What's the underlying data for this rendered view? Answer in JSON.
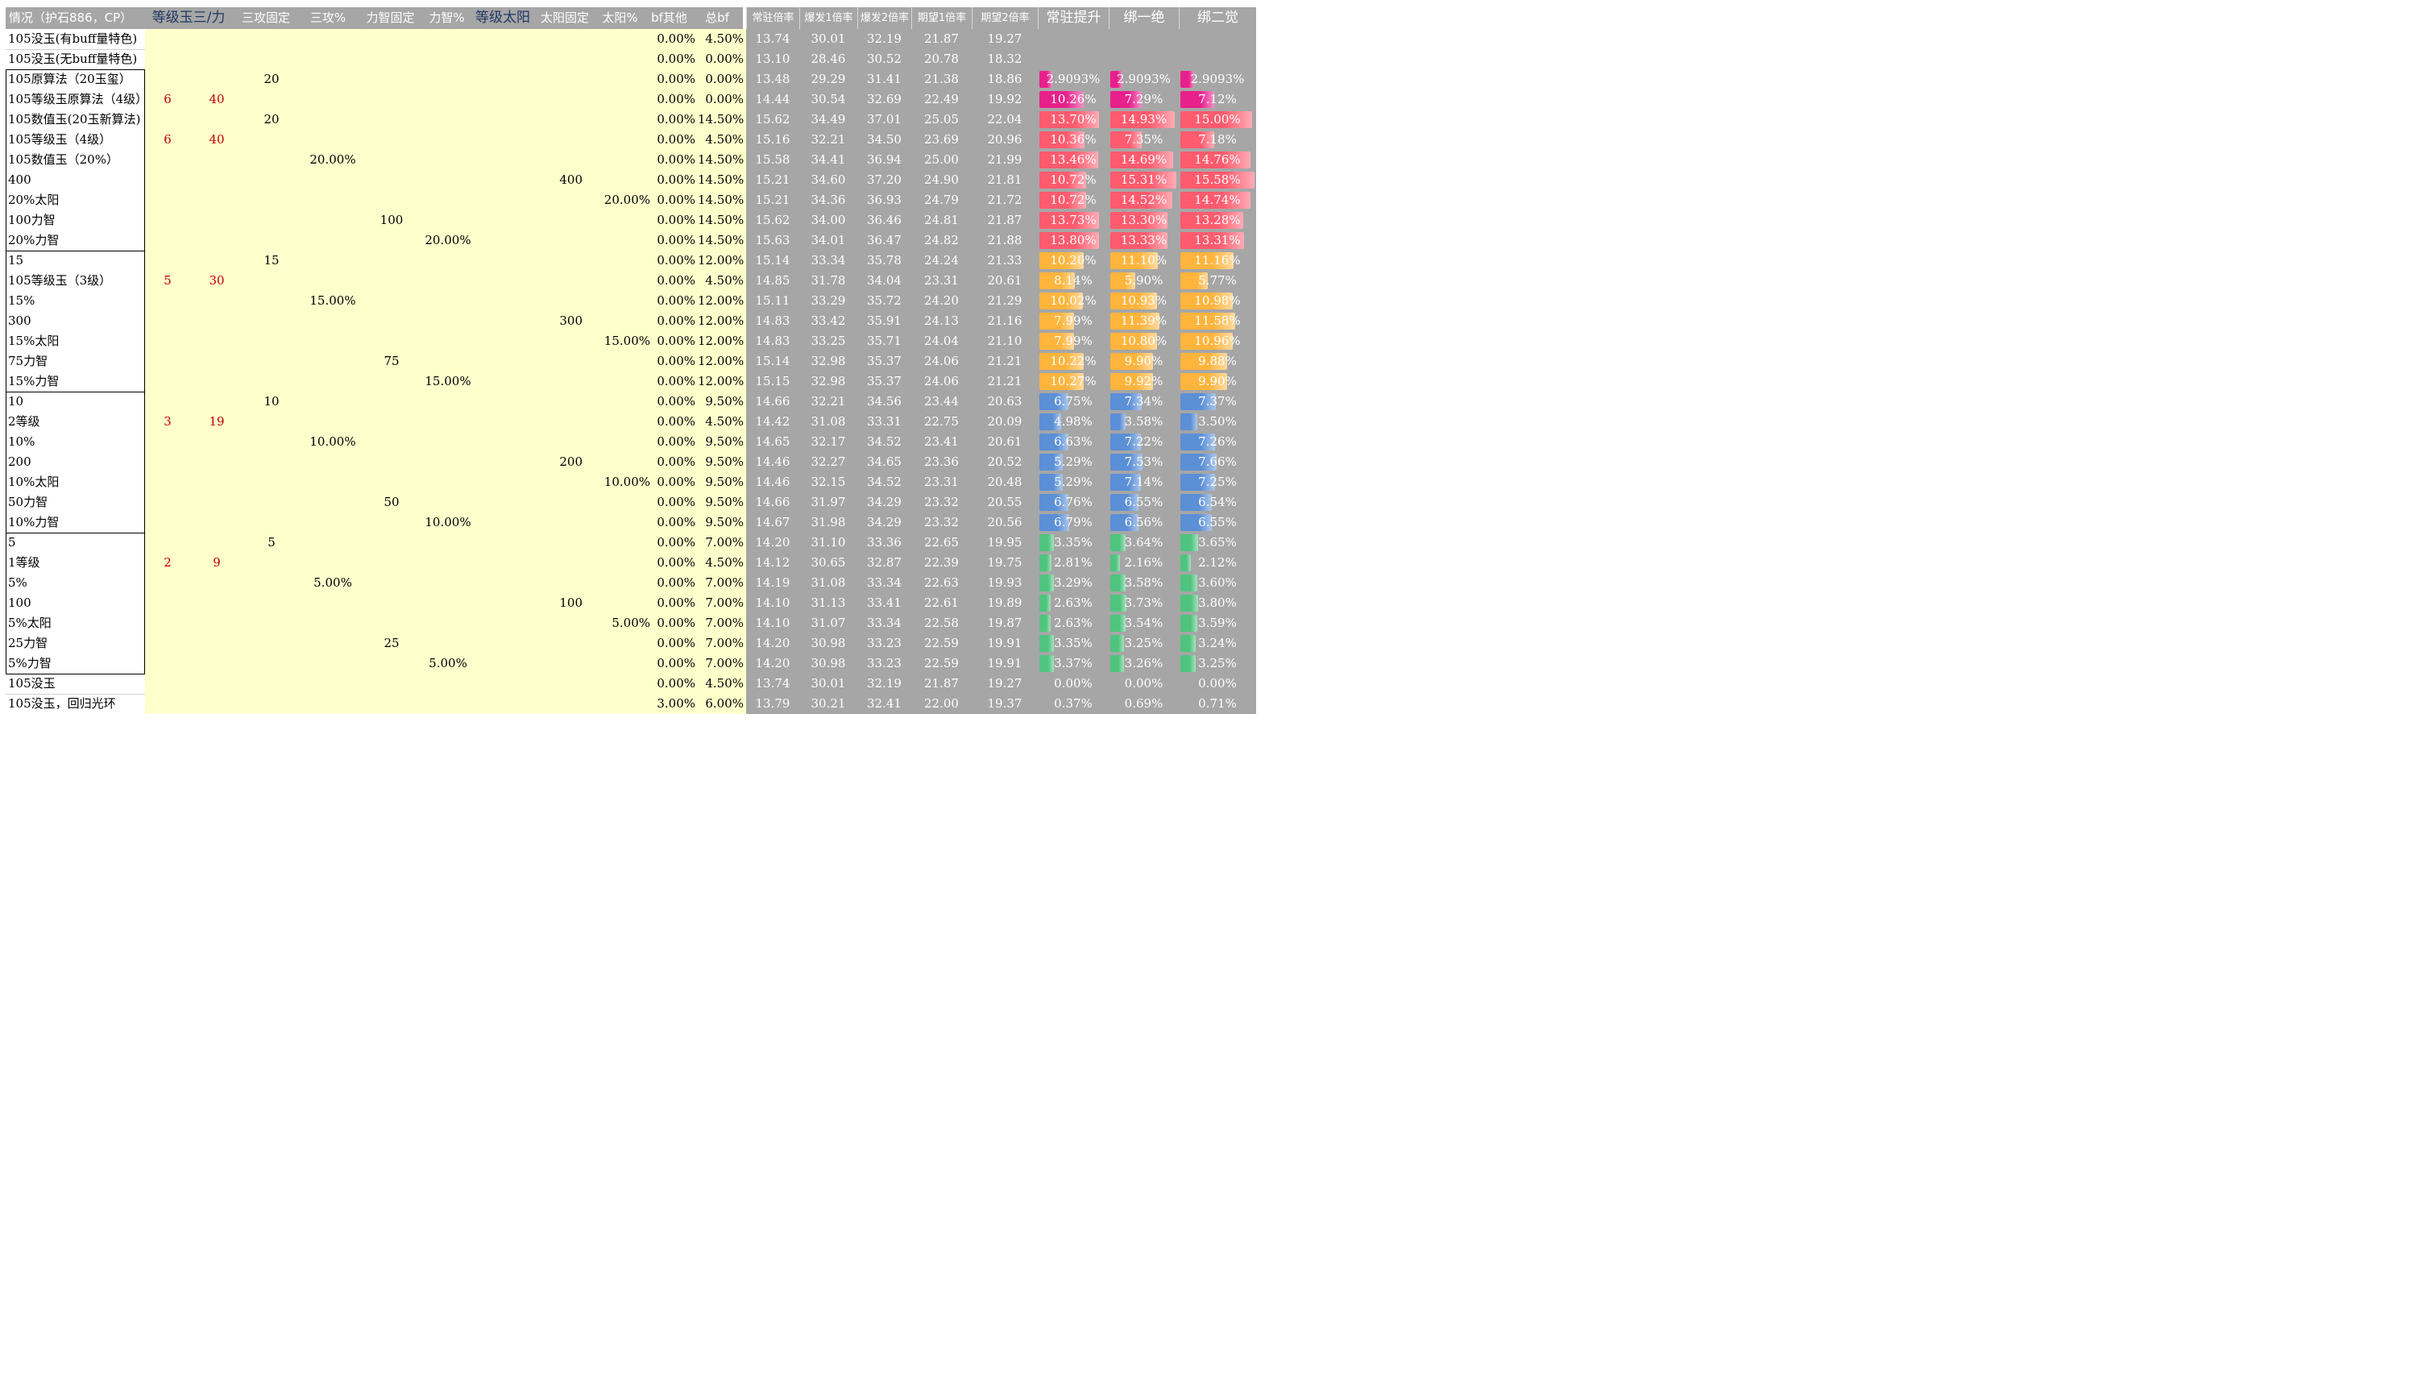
{
  "headers": [
    "情况（护石886，CP）",
    "等级玉三/力",
    "三攻固定",
    "三攻%",
    "力智固定",
    "力智%",
    "等级太阳",
    "太阳固定",
    "太阳%",
    "bf其他",
    "总bf",
    "常驻倍率",
    "爆发1倍率",
    "爆发2倍率",
    "期望1倍率",
    "期望2倍率",
    "常驻提升",
    "绑一绝",
    "绑二觉"
  ],
  "colors": {
    "magenta": "#e8208c",
    "red": "#ff5b6e",
    "orange": "#ffb43c",
    "blue": "#5b8fd6",
    "green": "#4fc47e",
    "grey": "#a6a6a6",
    "yellow": "#ffffcc",
    "red_text": "#c00000"
  },
  "rows": [
    {
      "label": "105没玉(有buff量特色)",
      "lvl": "",
      "lvlatk": "",
      "atk": "",
      "atkp": "",
      "stat": "",
      "statp": "",
      "sun": "",
      "sunp": "",
      "bfo": "0.00%",
      "bf": "4.50%",
      "m": [
        "13.74",
        "30.01",
        "32.19",
        "21.87",
        "19.27"
      ],
      "p": [
        "",
        "",
        ""
      ],
      "tone": "none"
    },
    {
      "label": "105没玉(无buff量特色)",
      "lvl": "",
      "lvlatk": "",
      "atk": "",
      "atkp": "",
      "stat": "",
      "statp": "",
      "sun": "",
      "sunp": "",
      "bfo": "0.00%",
      "bf": "0.00%",
      "m": [
        "13.10",
        "28.46",
        "30.52",
        "20.78",
        "18.32"
      ],
      "p": [
        "",
        "",
        ""
      ],
      "tone": "none"
    },
    {
      "label": "105原算法（20玉玺）",
      "lvl": "",
      "lvlatk": "",
      "atk": "20",
      "atkp": "",
      "stat": "",
      "statp": "",
      "sun": "",
      "sunp": "",
      "bfo": "0.00%",
      "bf": "0.00%",
      "m": [
        "13.48",
        "29.29",
        "31.41",
        "21.38",
        "18.86"
      ],
      "p": [
        "2.9093%",
        "2.9093%",
        "2.9093%"
      ],
      "tone": "magenta"
    },
    {
      "label": "105等级玉原算法（4级）",
      "lvl": "6",
      "lvlatk": "40",
      "atk": "",
      "atkp": "",
      "stat": "",
      "statp": "",
      "sun": "",
      "sunp": "",
      "bfo": "0.00%",
      "bf": "0.00%",
      "m": [
        "14.44",
        "30.54",
        "32.69",
        "22.49",
        "19.92"
      ],
      "p": [
        "10.26%",
        "7.29%",
        "7.12%"
      ],
      "tone": "magenta"
    },
    {
      "label": "105数值玉(20玉新算法)",
      "lvl": "",
      "lvlatk": "",
      "atk": "20",
      "atkp": "",
      "stat": "",
      "statp": "",
      "sun": "",
      "sunp": "",
      "bfo": "0.00%",
      "bf": "14.50%",
      "m": [
        "15.62",
        "34.49",
        "37.01",
        "25.05",
        "22.04"
      ],
      "p": [
        "13.70%",
        "14.93%",
        "15.00%"
      ],
      "tone": "red"
    },
    {
      "label": "105等级玉（4级）",
      "lvl": "6",
      "lvlatk": "40",
      "atk": "",
      "atkp": "",
      "stat": "",
      "statp": "",
      "sun": "",
      "sunp": "",
      "bfo": "0.00%",
      "bf": "4.50%",
      "m": [
        "15.16",
        "32.21",
        "34.50",
        "23.69",
        "20.96"
      ],
      "p": [
        "10.36%",
        "7.35%",
        "7.18%"
      ],
      "tone": "red"
    },
    {
      "label": "105数值玉（20%）",
      "lvl": "",
      "lvlatk": "",
      "atk": "",
      "atkp": "20.00%",
      "stat": "",
      "statp": "",
      "sun": "",
      "sunp": "",
      "bfo": "0.00%",
      "bf": "14.50%",
      "m": [
        "15.58",
        "34.41",
        "36.94",
        "25.00",
        "21.99"
      ],
      "p": [
        "13.46%",
        "14.69%",
        "14.76%"
      ],
      "tone": "red"
    },
    {
      "label": "400",
      "lvl": "",
      "lvlatk": "",
      "atk": "",
      "atkp": "",
      "stat": "",
      "statp": "",
      "sun": "400",
      "sunp": "",
      "bfo": "0.00%",
      "bf": "14.50%",
      "m": [
        "15.21",
        "34.60",
        "37.20",
        "24.90",
        "21.81"
      ],
      "p": [
        "10.72%",
        "15.31%",
        "15.58%"
      ],
      "tone": "red"
    },
    {
      "label": "20%太阳",
      "lvl": "",
      "lvlatk": "",
      "atk": "",
      "atkp": "",
      "stat": "",
      "statp": "",
      "sun": "",
      "sunp": "20.00%",
      "bfo": "0.00%",
      "bf": "14.50%",
      "m": [
        "15.21",
        "34.36",
        "36.93",
        "24.79",
        "21.72"
      ],
      "p": [
        "10.72%",
        "14.52%",
        "14.74%"
      ],
      "tone": "red"
    },
    {
      "label": "100力智",
      "lvl": "",
      "lvlatk": "",
      "atk": "",
      "atkp": "",
      "stat": "100",
      "statp": "",
      "sun": "",
      "sunp": "",
      "bfo": "0.00%",
      "bf": "14.50%",
      "m": [
        "15.62",
        "34.00",
        "36.46",
        "24.81",
        "21.87"
      ],
      "p": [
        "13.73%",
        "13.30%",
        "13.28%"
      ],
      "tone": "red"
    },
    {
      "label": "20%力智",
      "lvl": "",
      "lvlatk": "",
      "atk": "",
      "atkp": "",
      "stat": "",
      "statp": "20.00%",
      "sun": "",
      "sunp": "",
      "bfo": "0.00%",
      "bf": "14.50%",
      "m": [
        "15.63",
        "34.01",
        "36.47",
        "24.82",
        "21.88"
      ],
      "p": [
        "13.80%",
        "13.33%",
        "13.31%"
      ],
      "tone": "red"
    },
    {
      "label": "15",
      "lvl": "",
      "lvlatk": "",
      "atk": "15",
      "atkp": "",
      "stat": "",
      "statp": "",
      "sun": "",
      "sunp": "",
      "bfo": "0.00%",
      "bf": "12.00%",
      "m": [
        "15.14",
        "33.34",
        "35.78",
        "24.24",
        "21.33"
      ],
      "p": [
        "10.20%",
        "11.10%",
        "11.16%"
      ],
      "tone": "orange"
    },
    {
      "label": "105等级玉（3级）",
      "lvl": "5",
      "lvlatk": "30",
      "atk": "",
      "atkp": "",
      "stat": "",
      "statp": "",
      "sun": "",
      "sunp": "",
      "bfo": "0.00%",
      "bf": "4.50%",
      "m": [
        "14.85",
        "31.78",
        "34.04",
        "23.31",
        "20.61"
      ],
      "p": [
        "8.14%",
        "5.90%",
        "5.77%"
      ],
      "tone": "orange"
    },
    {
      "label": "15%",
      "lvl": "",
      "lvlatk": "",
      "atk": "",
      "atkp": "15.00%",
      "stat": "",
      "statp": "",
      "sun": "",
      "sunp": "",
      "bfo": "0.00%",
      "bf": "12.00%",
      "m": [
        "15.11",
        "33.29",
        "35.72",
        "24.20",
        "21.29"
      ],
      "p": [
        "10.02%",
        "10.93%",
        "10.98%"
      ],
      "tone": "orange"
    },
    {
      "label": "300",
      "lvl": "",
      "lvlatk": "",
      "atk": "",
      "atkp": "",
      "stat": "",
      "statp": "",
      "sun": "300",
      "sunp": "",
      "bfo": "0.00%",
      "bf": "12.00%",
      "m": [
        "14.83",
        "33.42",
        "35.91",
        "24.13",
        "21.16"
      ],
      "p": [
        "7.99%",
        "11.39%",
        "11.58%"
      ],
      "tone": "orange"
    },
    {
      "label": "15%太阳",
      "lvl": "",
      "lvlatk": "",
      "atk": "",
      "atkp": "",
      "stat": "",
      "statp": "",
      "sun": "",
      "sunp": "15.00%",
      "bfo": "0.00%",
      "bf": "12.00%",
      "m": [
        "14.83",
        "33.25",
        "35.71",
        "24.04",
        "21.10"
      ],
      "p": [
        "7.99%",
        "10.80%",
        "10.96%"
      ],
      "tone": "orange"
    },
    {
      "label": "75力智",
      "lvl": "",
      "lvlatk": "",
      "atk": "",
      "atkp": "",
      "stat": "75",
      "statp": "",
      "sun": "",
      "sunp": "",
      "bfo": "0.00%",
      "bf": "12.00%",
      "m": [
        "15.14",
        "32.98",
        "35.37",
        "24.06",
        "21.21"
      ],
      "p": [
        "10.22%",
        "9.90%",
        "9.88%"
      ],
      "tone": "orange"
    },
    {
      "label": "15%力智",
      "lvl": "",
      "lvlatk": "",
      "atk": "",
      "atkp": "",
      "stat": "",
      "statp": "15.00%",
      "sun": "",
      "sunp": "",
      "bfo": "0.00%",
      "bf": "12.00%",
      "m": [
        "15.15",
        "32.98",
        "35.37",
        "24.06",
        "21.21"
      ],
      "p": [
        "10.27%",
        "9.92%",
        "9.90%"
      ],
      "tone": "orange"
    },
    {
      "label": "10",
      "lvl": "",
      "lvlatk": "",
      "atk": "10",
      "atkp": "",
      "stat": "",
      "statp": "",
      "sun": "",
      "sunp": "",
      "bfo": "0.00%",
      "bf": "9.50%",
      "m": [
        "14.66",
        "32.21",
        "34.56",
        "23.44",
        "20.63"
      ],
      "p": [
        "6.75%",
        "7.34%",
        "7.37%"
      ],
      "tone": "blue"
    },
    {
      "label": "2等级",
      "lvl": "3",
      "lvlatk": "19",
      "atk": "",
      "atkp": "",
      "stat": "",
      "statp": "",
      "sun": "",
      "sunp": "",
      "bfo": "0.00%",
      "bf": "4.50%",
      "m": [
        "14.42",
        "31.08",
        "33.31",
        "22.75",
        "20.09"
      ],
      "p": [
        "4.98%",
        "3.58%",
        "3.50%"
      ],
      "tone": "blue"
    },
    {
      "label": "10%",
      "lvl": "",
      "lvlatk": "",
      "atk": "",
      "atkp": "10.00%",
      "stat": "",
      "statp": "",
      "sun": "",
      "sunp": "",
      "bfo": "0.00%",
      "bf": "9.50%",
      "m": [
        "14.65",
        "32.17",
        "34.52",
        "23.41",
        "20.61"
      ],
      "p": [
        "6.63%",
        "7.22%",
        "7.26%"
      ],
      "tone": "blue"
    },
    {
      "label": "200",
      "lvl": "",
      "lvlatk": "",
      "atk": "",
      "atkp": "",
      "stat": "",
      "statp": "",
      "sun": "200",
      "sunp": "",
      "bfo": "0.00%",
      "bf": "9.50%",
      "m": [
        "14.46",
        "32.27",
        "34.65",
        "23.36",
        "20.52"
      ],
      "p": [
        "5.29%",
        "7.53%",
        "7.66%"
      ],
      "tone": "blue"
    },
    {
      "label": "10%太阳",
      "lvl": "",
      "lvlatk": "",
      "atk": "",
      "atkp": "",
      "stat": "",
      "statp": "",
      "sun": "",
      "sunp": "10.00%",
      "bfo": "0.00%",
      "bf": "9.50%",
      "m": [
        "14.46",
        "32.15",
        "34.52",
        "23.31",
        "20.48"
      ],
      "p": [
        "5.29%",
        "7.14%",
        "7.25%"
      ],
      "tone": "blue"
    },
    {
      "label": "50力智",
      "lvl": "",
      "lvlatk": "",
      "atk": "",
      "atkp": "",
      "stat": "50",
      "statp": "",
      "sun": "",
      "sunp": "",
      "bfo": "0.00%",
      "bf": "9.50%",
      "m": [
        "14.66",
        "31.97",
        "34.29",
        "23.32",
        "20.55"
      ],
      "p": [
        "6.76%",
        "6.55%",
        "6.54%"
      ],
      "tone": "blue"
    },
    {
      "label": "10%力智",
      "lvl": "",
      "lvlatk": "",
      "atk": "",
      "atkp": "",
      "stat": "",
      "statp": "10.00%",
      "sun": "",
      "sunp": "",
      "bfo": "0.00%",
      "bf": "9.50%",
      "m": [
        "14.67",
        "31.98",
        "34.29",
        "23.32",
        "20.56"
      ],
      "p": [
        "6.79%",
        "6.56%",
        "6.55%"
      ],
      "tone": "blue"
    },
    {
      "label": "5",
      "lvl": "",
      "lvlatk": "",
      "atk": "5",
      "atkp": "",
      "stat": "",
      "statp": "",
      "sun": "",
      "sunp": "",
      "bfo": "0.00%",
      "bf": "7.00%",
      "m": [
        "14.20",
        "31.10",
        "33.36",
        "22.65",
        "19.95"
      ],
      "p": [
        "3.35%",
        "3.64%",
        "3.65%"
      ],
      "tone": "green"
    },
    {
      "label": "1等级",
      "lvl": "2",
      "lvlatk": "9",
      "atk": "",
      "atkp": "",
      "stat": "",
      "statp": "",
      "sun": "",
      "sunp": "",
      "bfo": "0.00%",
      "bf": "4.50%",
      "m": [
        "14.12",
        "30.65",
        "32.87",
        "22.39",
        "19.75"
      ],
      "p": [
        "2.81%",
        "2.16%",
        "2.12%"
      ],
      "tone": "green"
    },
    {
      "label": "5%",
      "lvl": "",
      "lvlatk": "",
      "atk": "",
      "atkp": "5.00%",
      "stat": "",
      "statp": "",
      "sun": "",
      "sunp": "",
      "bfo": "0.00%",
      "bf": "7.00%",
      "m": [
        "14.19",
        "31.08",
        "33.34",
        "22.63",
        "19.93"
      ],
      "p": [
        "3.29%",
        "3.58%",
        "3.60%"
      ],
      "tone": "green"
    },
    {
      "label": "100",
      "lvl": "",
      "lvlatk": "",
      "atk": "",
      "atkp": "",
      "stat": "",
      "statp": "",
      "sun": "100",
      "sunp": "",
      "bfo": "0.00%",
      "bf": "7.00%",
      "m": [
        "14.10",
        "31.13",
        "33.41",
        "22.61",
        "19.89"
      ],
      "p": [
        "2.63%",
        "3.73%",
        "3.80%"
      ],
      "tone": "green"
    },
    {
      "label": "5%太阳",
      "lvl": "",
      "lvlatk": "",
      "atk": "",
      "atkp": "",
      "stat": "",
      "statp": "",
      "sun": "",
      "sunp": "5.00%",
      "bfo": "0.00%",
      "bf": "7.00%",
      "m": [
        "14.10",
        "31.07",
        "33.34",
        "22.58",
        "19.87"
      ],
      "p": [
        "2.63%",
        "3.54%",
        "3.59%"
      ],
      "tone": "green"
    },
    {
      "label": "25力智",
      "lvl": "",
      "lvlatk": "",
      "atk": "",
      "atkp": "",
      "stat": "25",
      "statp": "",
      "sun": "",
      "sunp": "",
      "bfo": "0.00%",
      "bf": "7.00%",
      "m": [
        "14.20",
        "30.98",
        "33.23",
        "22.59",
        "19.91"
      ],
      "p": [
        "3.35%",
        "3.25%",
        "3.24%"
      ],
      "tone": "green"
    },
    {
      "label": "5%力智",
      "lvl": "",
      "lvlatk": "",
      "atk": "",
      "atkp": "",
      "stat": "",
      "statp": "5.00%",
      "sun": "",
      "sunp": "",
      "bfo": "0.00%",
      "bf": "7.00%",
      "m": [
        "14.20",
        "30.98",
        "33.23",
        "22.59",
        "19.91"
      ],
      "p": [
        "3.37%",
        "3.26%",
        "3.25%"
      ],
      "tone": "green"
    },
    {
      "label": "105没玉",
      "lvl": "",
      "lvlatk": "",
      "atk": "",
      "atkp": "",
      "stat": "",
      "statp": "",
      "sun": "",
      "sunp": "",
      "bfo": "0.00%",
      "bf": "4.50%",
      "m": [
        "13.74",
        "30.01",
        "32.19",
        "21.87",
        "19.27"
      ],
      "p": [
        "0.00%",
        "0.00%",
        "0.00%"
      ],
      "tone": "plain"
    },
    {
      "label": "105没玉，回归光环",
      "lvl": "",
      "lvlatk": "",
      "atk": "",
      "atkp": "",
      "stat": "",
      "statp": "",
      "sun": "",
      "sunp": "",
      "bfo": "3.00%",
      "bf": "6.00%",
      "m": [
        "13.79",
        "30.21",
        "32.41",
        "22.00",
        "19.37"
      ],
      "p": [
        "0.37%",
        "0.69%",
        "0.71%"
      ],
      "tone": "plain"
    }
  ]
}
